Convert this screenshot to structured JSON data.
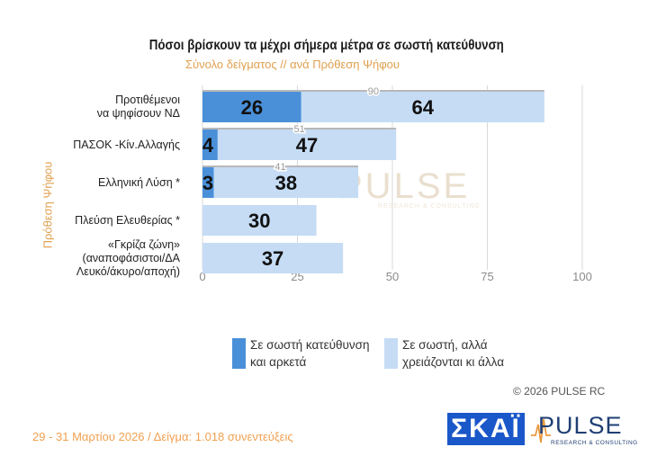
{
  "title": "Πόσοι βρίσκουν τα μέχρι σήμερα μέτρα σε σωστή κατεύθυνση",
  "subtitle": "Σύνολο δείγματος // ανά Πρόθεση  Ψήφου",
  "copyright": "© 2026 PULSE RC",
  "footer": "29 - 31 Μαρτίου 2026  /  Δείγμα:  1.018 συνεντεύξεις",
  "watermark": {
    "name": "PULSE",
    "tagline": "RESEARCH & CONSULTING"
  },
  "logos": {
    "skai": "ΣΚΑΪ",
    "pulse": "PULSE",
    "pulse_sub": "RESEARCH & CONSULTING"
  },
  "colors": {
    "series1": "#4a90d9",
    "series2": "#c5dcf4",
    "accent": "#e0a050"
  },
  "legend": [
    {
      "label_line1": "Σε σωστή κατεύθυνση",
      "label_line2": "και αρκετά"
    },
    {
      "label_line1": "Σε σωστή, αλλά",
      "label_line2": "χρειάζονται κι άλλα"
    }
  ],
  "chart_data": {
    "type": "bar",
    "orientation": "horizontal",
    "stacked": true,
    "ylabel": "Πρόθεση  Ψήφου",
    "categories": [
      [
        "Προτιθέμενοι",
        "να ψηφίσουν ΝΔ"
      ],
      [
        "ΠΑΣΟΚ -Κίν.Αλλαγής"
      ],
      [
        "Ελληνική Λύση *"
      ],
      [
        "Πλεύση Ελευθερίας *"
      ],
      [
        "«Γκρίζα ζώνη»",
        "(αναποφάσιστοι/ΔΑ",
        "Λευκό/άκυρο/αποχή)"
      ]
    ],
    "series": [
      {
        "name": "Σε σωστή κατεύθυνση και αρκετά",
        "values": [
          26,
          4,
          3,
          null,
          null
        ]
      },
      {
        "name": "Σε σωστή, αλλά χρειάζονται κι άλλα",
        "values": [
          64,
          47,
          38,
          30,
          37
        ]
      }
    ],
    "totals": [
      90,
      51,
      41,
      null,
      null
    ],
    "xlim": [
      0,
      100
    ],
    "xticks": [
      0,
      25,
      50,
      75,
      100
    ],
    "grid": true,
    "legend_position": "bottom"
  }
}
